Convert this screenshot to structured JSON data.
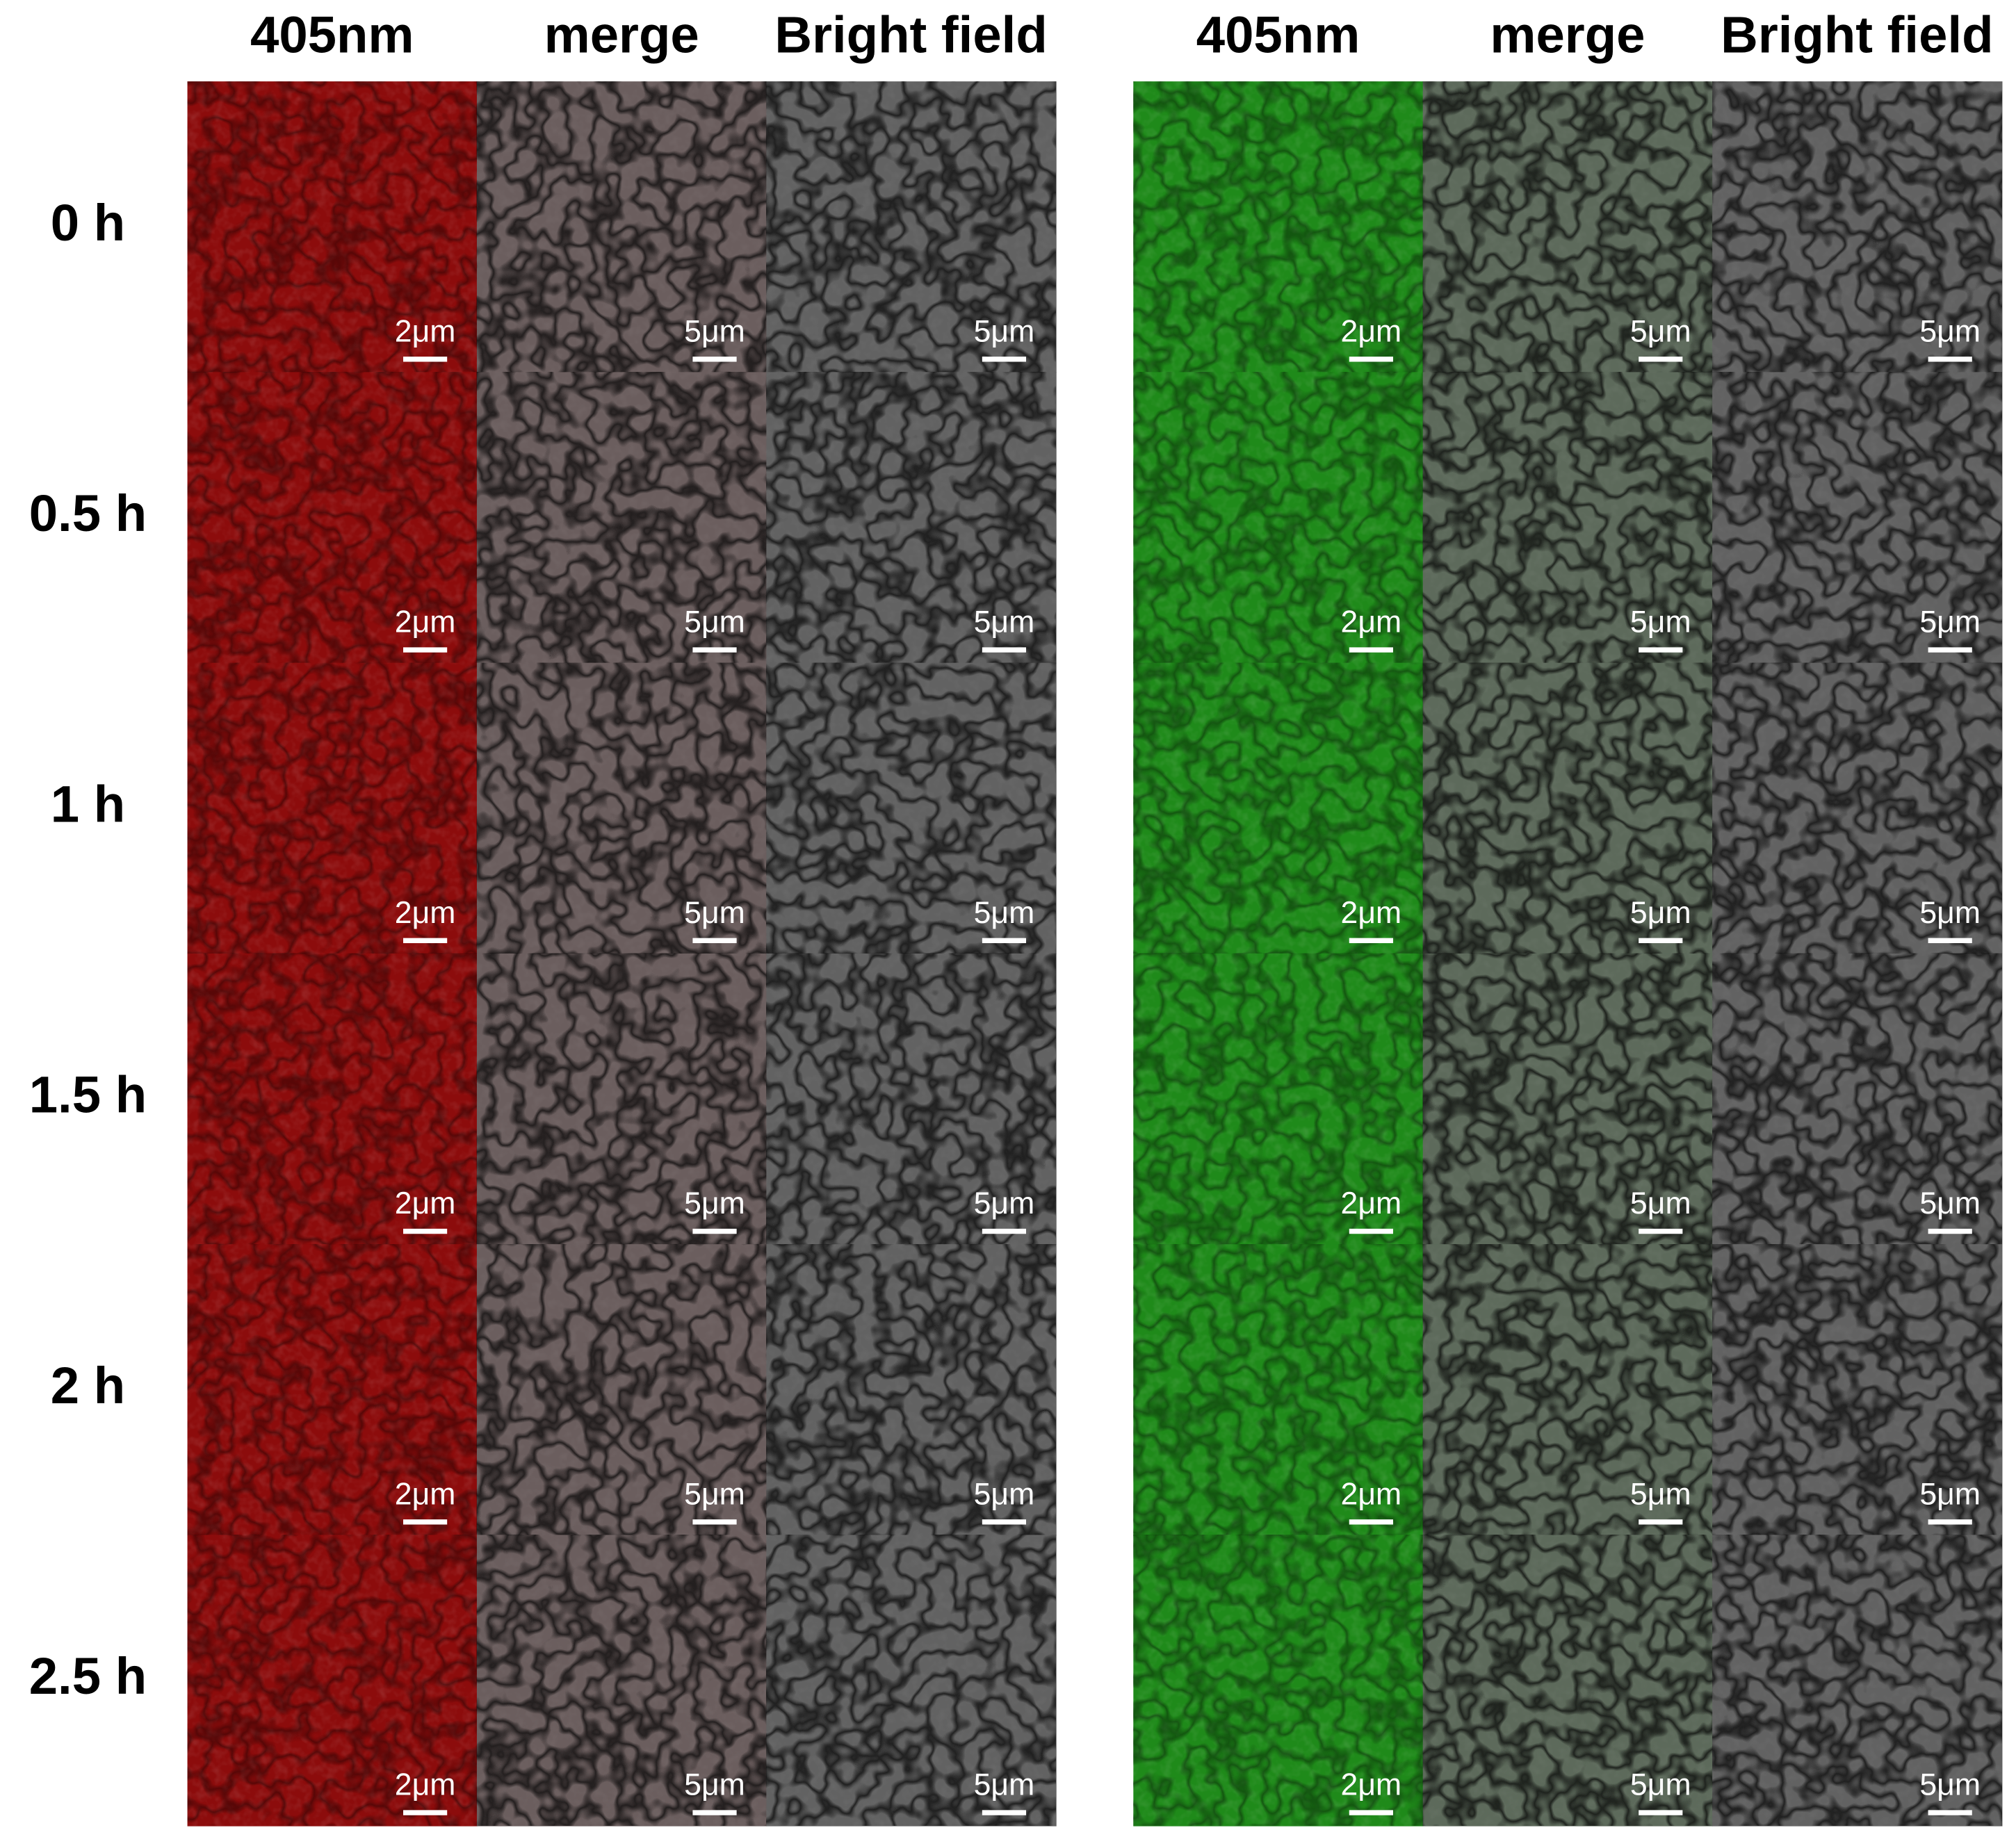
{
  "row_labels": [
    "0 h",
    "0.5 h",
    "1 h",
    "1.5 h",
    "2 h",
    "2.5 h"
  ],
  "panels": [
    {
      "headers": [
        "405nm",
        "merge",
        "Bright field"
      ],
      "scale_bars": [
        [
          "2μm",
          "5μm",
          "5μm"
        ],
        [
          "2μm",
          "5μm",
          "5μm"
        ],
        [
          "2μm",
          "5μm",
          "5μm"
        ],
        [
          "2μm",
          "5μm",
          "5μm"
        ],
        [
          "2μm",
          "5μm",
          "5μm"
        ],
        [
          "2μm",
          "5μm",
          "5μm"
        ]
      ]
    },
    {
      "headers": [
        "405nm",
        "merge",
        "Bright field"
      ],
      "scale_bars": [
        [
          "2μm",
          "5μm",
          "5μm"
        ],
        [
          "2μm",
          "5μm",
          "5μm"
        ],
        [
          "2μm",
          "5μm",
          "5μm"
        ],
        [
          "2μm",
          "5μm",
          "5μm"
        ],
        [
          "2μm",
          "5μm",
          "5μm"
        ],
        [
          "2μm",
          "5μm",
          "5μm"
        ]
      ]
    }
  ]
}
